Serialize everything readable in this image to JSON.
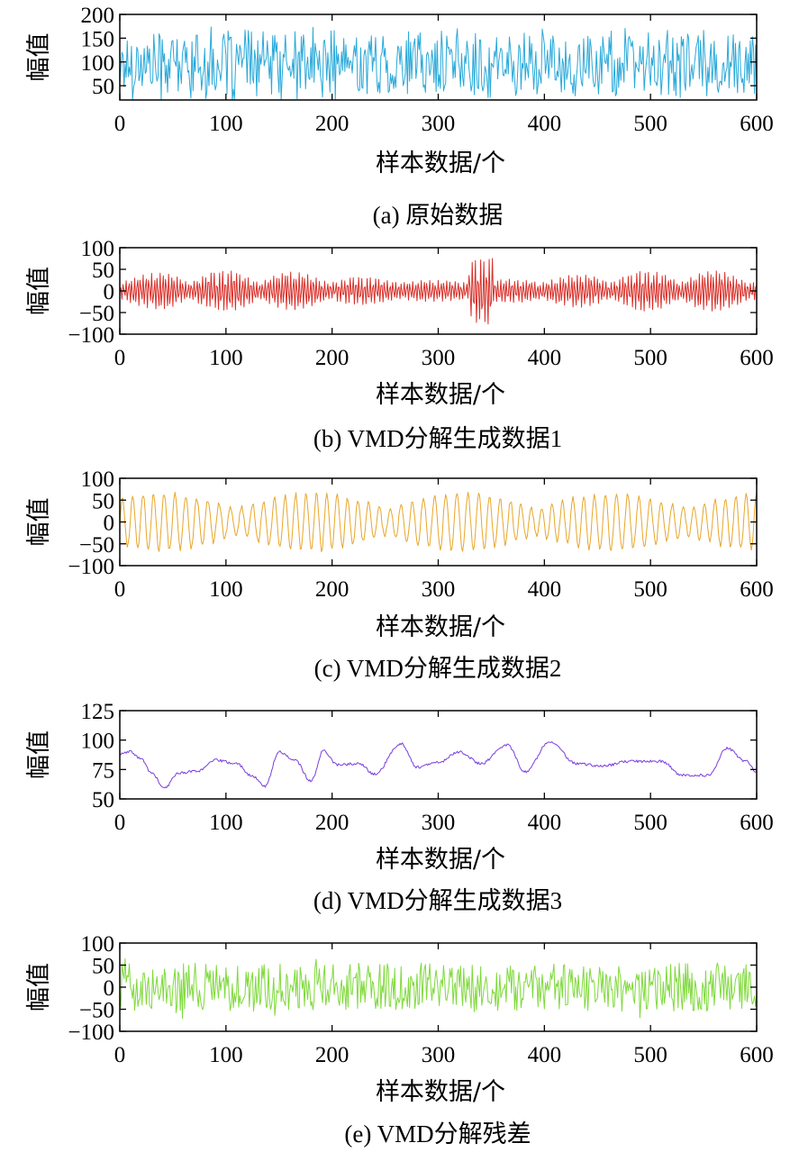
{
  "chart_data": [
    {
      "type": "line",
      "caption": "(a) 原始数据",
      "xlabel": "样本数据/个",
      "ylabel": "幅值",
      "xlim": [
        0,
        600
      ],
      "ylim": [
        20,
        200
      ],
      "xticks": [
        0,
        100,
        200,
        300,
        400,
        500,
        600
      ],
      "xtick_labels": [
        "0",
        "100",
        "200",
        "300",
        "400",
        "500",
        "600"
      ],
      "yticks": [
        50,
        100,
        150,
        200
      ],
      "ytick_labels": [
        "50",
        "100",
        "150",
        "200"
      ],
      "color": "#29a9d9",
      "series": [
        {
          "name": "原始数据",
          "n": 600,
          "baseline": 95,
          "amplitude": 85,
          "pattern": "noise"
        }
      ]
    },
    {
      "type": "line",
      "caption": "(b) VMD分解生成数据1",
      "xlabel": "样本数据/个",
      "ylabel": "幅值",
      "xlim": [
        0,
        600
      ],
      "ylim": [
        -100,
        100
      ],
      "xticks": [
        0,
        100,
        200,
        300,
        400,
        500,
        600
      ],
      "xtick_labels": [
        "0",
        "100",
        "200",
        "300",
        "400",
        "500",
        "600"
      ],
      "yticks": [
        -100,
        -50,
        0,
        50,
        100
      ],
      "ytick_labels": [
        "−100",
        "−50",
        "0",
        "50",
        "100"
      ],
      "color": "#d9302a",
      "series": [
        {
          "name": "VMD分解生成数据1",
          "n": 600,
          "baseline": 0,
          "amplitude": 95,
          "pattern": "hf"
        }
      ]
    },
    {
      "type": "line",
      "caption": "(c) VMD分解生成数据2",
      "xlabel": "样本数据/个",
      "ylabel": "幅值",
      "xlim": [
        0,
        600
      ],
      "ylim": [
        -100,
        100
      ],
      "xticks": [
        0,
        100,
        200,
        300,
        400,
        500,
        600
      ],
      "xtick_labels": [
        "0",
        "100",
        "200",
        "300",
        "400",
        "500",
        "600"
      ],
      "yticks": [
        -100,
        -50,
        0,
        50,
        100
      ],
      "ytick_labels": [
        "−100",
        "−50",
        "0",
        "50",
        "100"
      ],
      "color": "#e8a628",
      "series": [
        {
          "name": "VMD分解生成数据2",
          "n": 600,
          "baseline": 0,
          "amplitude": 95,
          "pattern": "mf"
        }
      ]
    },
    {
      "type": "line",
      "caption": "(d) VMD分解生成数据3",
      "xlabel": "样本数据/个",
      "ylabel": "幅值",
      "xlim": [
        0,
        600
      ],
      "ylim": [
        50,
        125
      ],
      "xticks": [
        0,
        100,
        200,
        300,
        400,
        500,
        600
      ],
      "xtick_labels": [
        "0",
        "100",
        "200",
        "300",
        "400",
        "500",
        "600"
      ],
      "yticks": [
        50,
        75,
        100,
        125
      ],
      "ytick_labels": [
        "50",
        "75",
        "100",
        "125"
      ],
      "color": "#7a3fe0",
      "series": [
        {
          "name": "VMD分解生成数据3",
          "n": 600,
          "pattern": "lf",
          "anchors": [
            [
              0,
              88
            ],
            [
              10,
              90
            ],
            [
              20,
              84
            ],
            [
              30,
              72
            ],
            [
              42,
              59
            ],
            [
              55,
              72
            ],
            [
              75,
              74
            ],
            [
              90,
              83
            ],
            [
              110,
              80
            ],
            [
              125,
              69
            ],
            [
              137,
              61
            ],
            [
              150,
              90
            ],
            [
              165,
              83
            ],
            [
              180,
              65
            ],
            [
              192,
              91
            ],
            [
              205,
              79
            ],
            [
              225,
              80
            ],
            [
              240,
              71
            ],
            [
              265,
              97
            ],
            [
              280,
              77
            ],
            [
              300,
              81
            ],
            [
              320,
              90
            ],
            [
              340,
              80
            ],
            [
              365,
              96
            ],
            [
              382,
              73
            ],
            [
              405,
              99
            ],
            [
              430,
              80
            ],
            [
              455,
              78
            ],
            [
              480,
              82
            ],
            [
              510,
              82
            ],
            [
              530,
              70
            ],
            [
              555,
              70
            ],
            [
              572,
              93
            ],
            [
              590,
              82
            ],
            [
              600,
              73
            ]
          ]
        }
      ]
    },
    {
      "type": "line",
      "caption": "(e) VMD分解残差",
      "xlabel": "样本数据/个",
      "ylabel": "幅值",
      "xlim": [
        0,
        600
      ],
      "ylim": [
        -100,
        100
      ],
      "xticks": [
        0,
        100,
        200,
        300,
        400,
        500,
        600
      ],
      "xtick_labels": [
        "0",
        "100",
        "200",
        "300",
        "400",
        "500",
        "600"
      ],
      "yticks": [
        -100,
        -50,
        0,
        50,
        100
      ],
      "ytick_labels": [
        "−100",
        "−50",
        "0",
        "50",
        "100"
      ],
      "color": "#7ed93a",
      "series": [
        {
          "name": "VMD分解残差",
          "n": 600,
          "baseline": 0,
          "amplitude": 95,
          "pattern": "noise"
        }
      ]
    }
  ]
}
